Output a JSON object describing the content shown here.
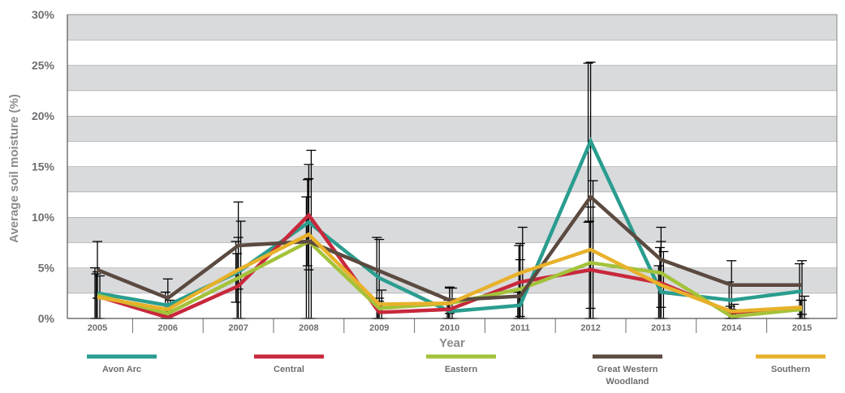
{
  "chart_data": {
    "type": "line",
    "xlabel": "Year",
    "ylabel": "Average soil moisture (%)",
    "ylim": [
      0,
      30
    ],
    "y_ticks": [
      "0%",
      "5%",
      "10%",
      "15%",
      "20%",
      "25%",
      "30%"
    ],
    "categories": [
      "2005",
      "2006",
      "2007",
      "2008",
      "2009",
      "2010",
      "2011",
      "2012",
      "2013",
      "2014",
      "2015"
    ],
    "grid": "horizontal-bands",
    "legend_position": "bottom",
    "series": [
      {
        "name": "Avon Arc",
        "color": "#2a9d8f",
        "values": [
          2.5,
          1.3,
          4.6,
          9.5,
          4.0,
          0.7,
          1.3,
          17.5,
          2.6,
          1.8,
          2.7
        ],
        "err_low": [
          2.5,
          1.3,
          3.0,
          9.5,
          4.0,
          0.7,
          1.3,
          8.0,
          2.6,
          1.8,
          2.7
        ],
        "err_high": [
          2.5,
          1.3,
          3.0,
          2.5,
          4.0,
          0.7,
          1.3,
          7.7,
          2.6,
          1.8,
          2.7
        ]
      },
      {
        "name": "Central",
        "color": "#c8283c",
        "values": [
          2.2,
          0.1,
          3.2,
          10.2,
          0.6,
          0.9,
          3.6,
          4.8,
          3.5,
          0.6,
          0.9
        ],
        "err_low": [
          2.2,
          0.1,
          3.2,
          5.0,
          0.6,
          0.9,
          3.6,
          4.8,
          3.5,
          0.6,
          0.9
        ],
        "err_high": [
          2.2,
          0.1,
          3.2,
          3.5,
          0.6,
          0.9,
          3.6,
          4.8,
          3.5,
          0.6,
          0.9
        ]
      },
      {
        "name": "Eastern",
        "color": "#a3c23a",
        "values": [
          2.3,
          0.5,
          4.0,
          7.6,
          1.0,
          1.5,
          2.9,
          5.5,
          4.5,
          0.2,
          0.9
        ],
        "err_low": [
          2.3,
          0.5,
          4.0,
          7.6,
          1.0,
          1.5,
          2.9,
          5.5,
          4.5,
          0.2,
          0.9
        ],
        "err_high": [
          2.3,
          0.5,
          4.0,
          7.6,
          1.0,
          1.5,
          2.9,
          5.5,
          4.5,
          0.2,
          0.9
        ]
      },
      {
        "name": "Great Western Woodland",
        "color": "#5b4a40",
        "values": [
          4.8,
          2.0,
          7.2,
          7.6,
          4.7,
          1.8,
          2.2,
          12.0,
          5.8,
          3.3,
          3.3
        ],
        "err_low": [
          2.8,
          1.3,
          4.3,
          2.8,
          3.0,
          1.3,
          2.0,
          11.0,
          4.7,
          2.4,
          2.9
        ],
        "err_high": [
          2.8,
          1.9,
          4.3,
          6.2,
          3.1,
          1.3,
          5.2,
          13.3,
          1.8,
          2.4,
          2.4
        ]
      },
      {
        "name": "Southern",
        "color": "#e8b12a",
        "values": [
          2.1,
          0.9,
          4.8,
          8.3,
          1.4,
          1.5,
          4.5,
          6.8,
          3.3,
          0.7,
          1.1
        ],
        "err_low": [
          2.1,
          0.9,
          4.8,
          8.3,
          1.4,
          1.5,
          4.5,
          6.8,
          3.3,
          0.7,
          1.1
        ],
        "err_high": [
          2.1,
          0.9,
          4.8,
          8.3,
          1.4,
          1.5,
          4.5,
          6.8,
          3.3,
          0.7,
          1.1
        ]
      }
    ]
  }
}
